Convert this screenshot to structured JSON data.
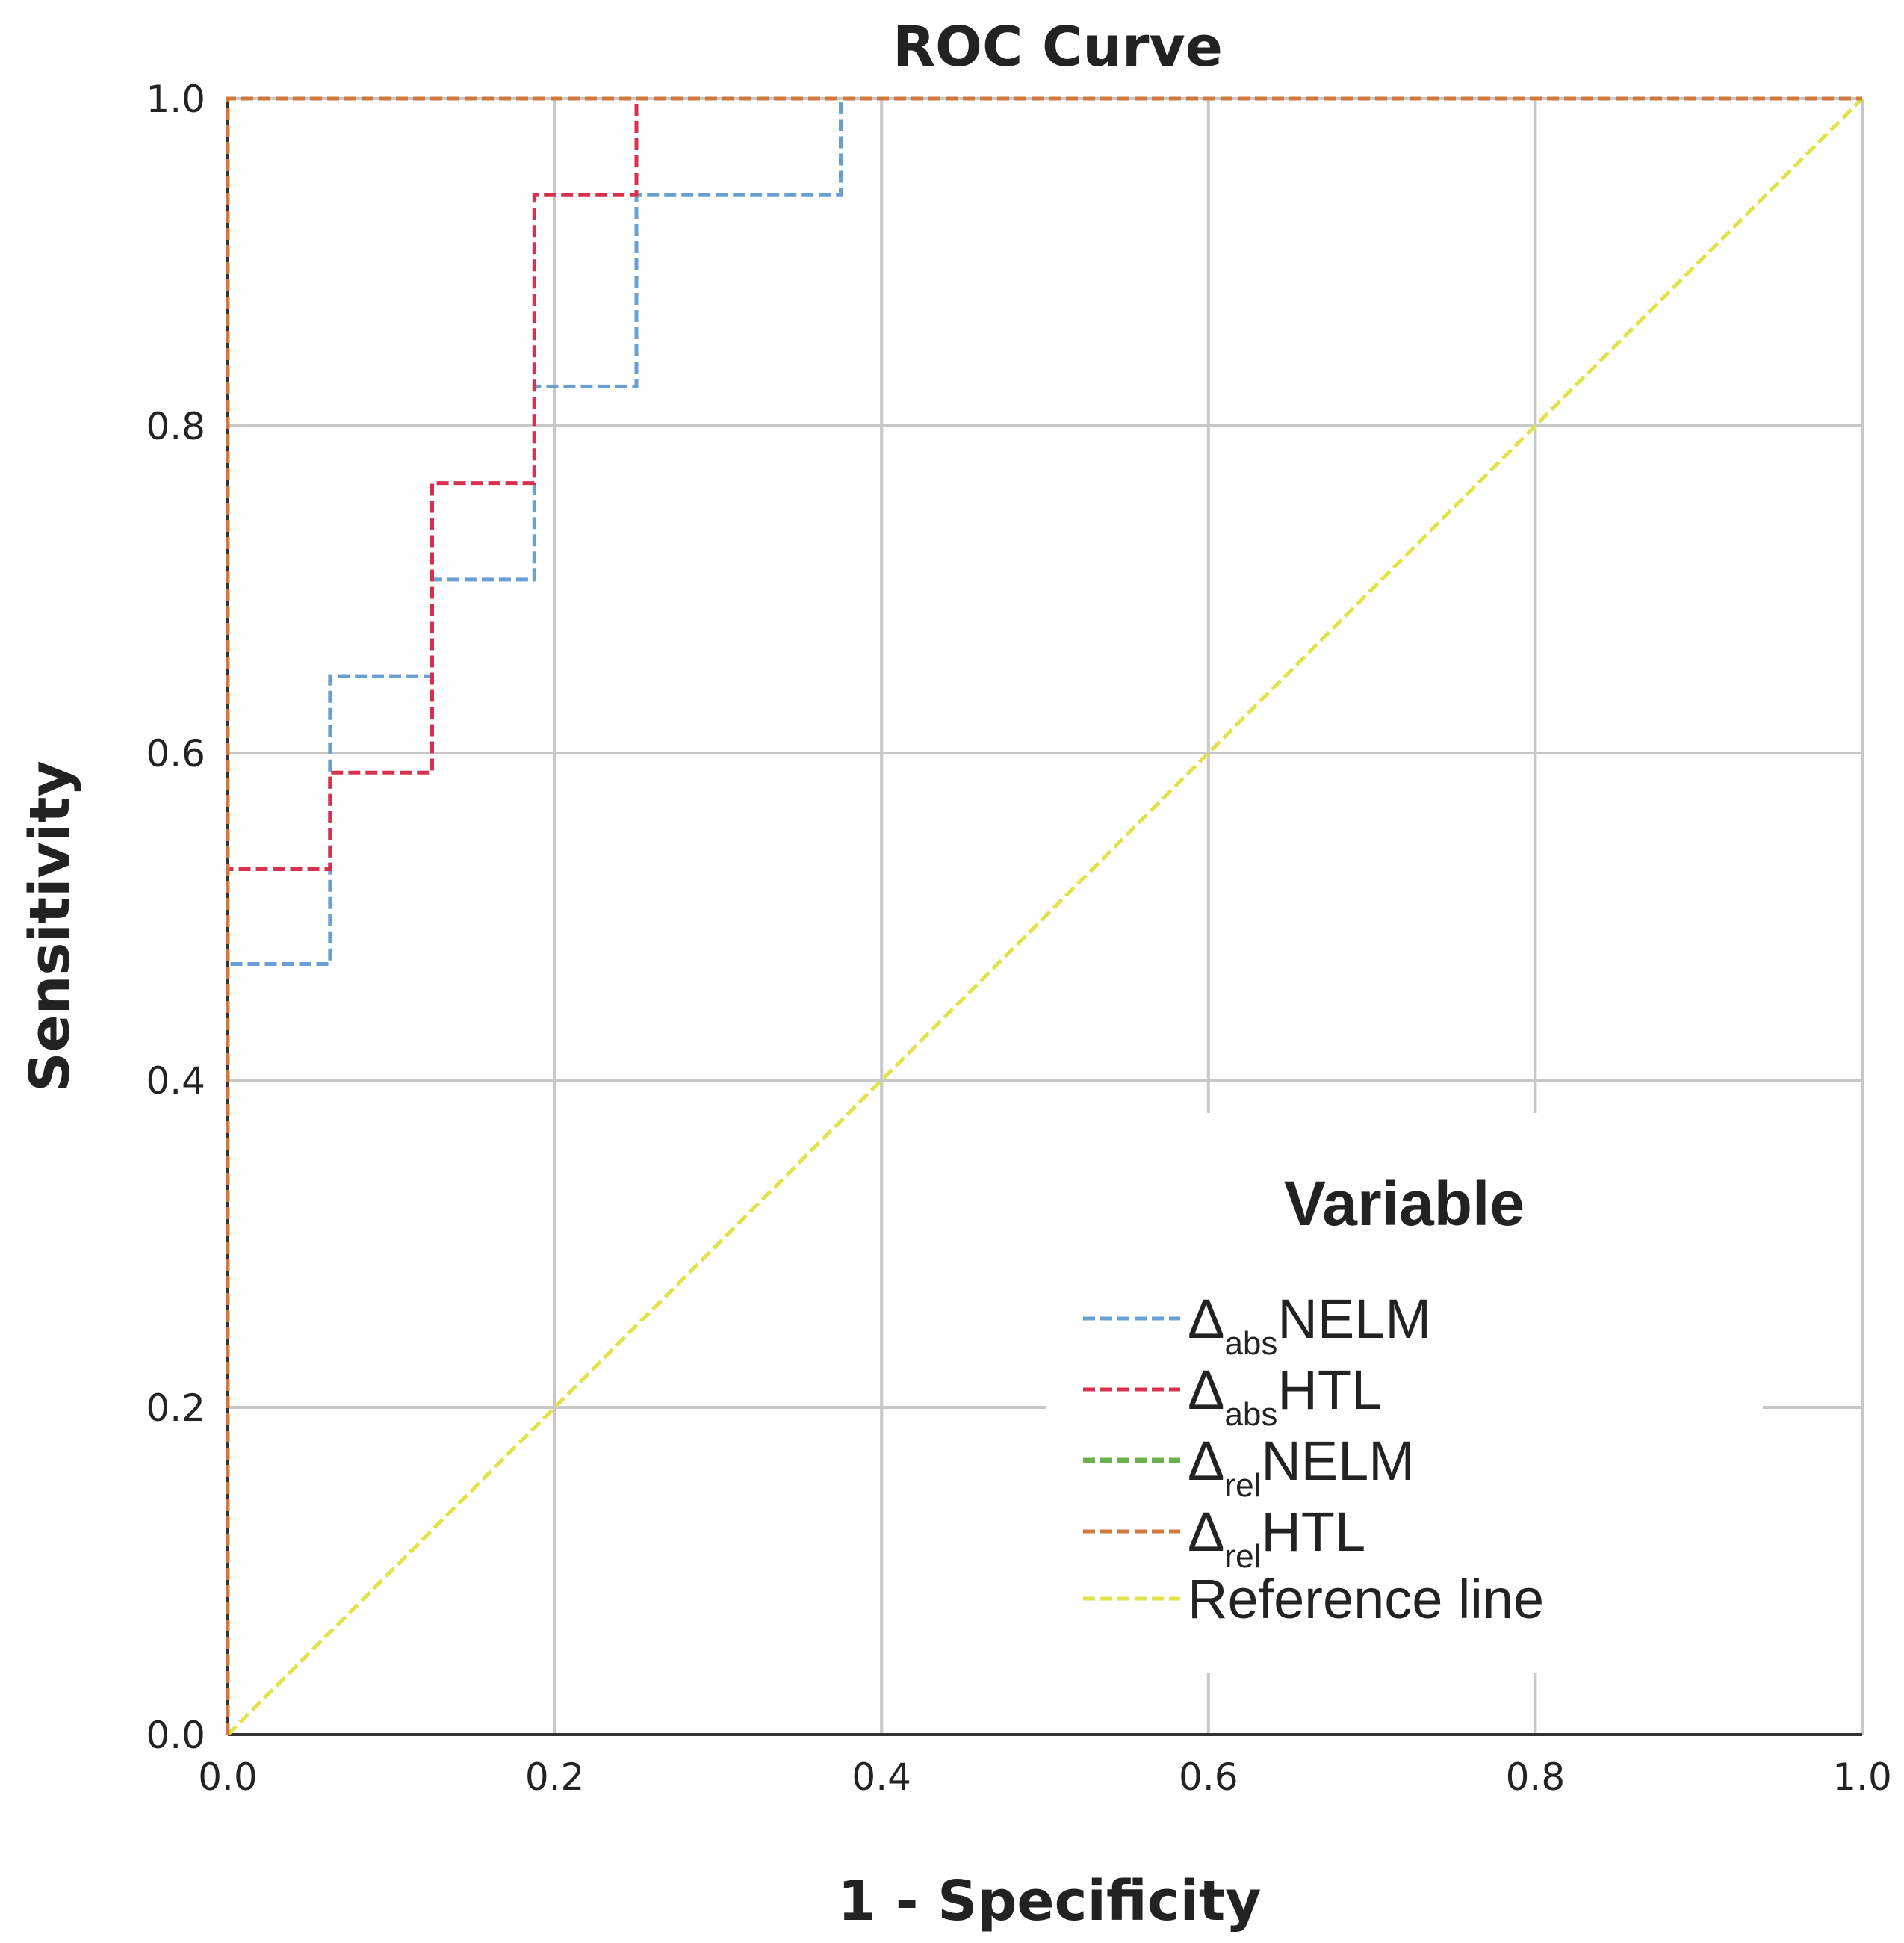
{
  "chart_data": {
    "type": "line",
    "title": "ROC Curve",
    "xlabel": "1 - Specificity",
    "ylabel": "Sensitivity",
    "xlim": [
      0,
      1
    ],
    "ylim": [
      0,
      1
    ],
    "grid": true,
    "x_ticks": [
      "0.0",
      "0.2",
      "0.4",
      "0.6",
      "0.8",
      "1.0"
    ],
    "y_ticks": [
      "0.0",
      "0.2",
      "0.4",
      "0.6",
      "0.8",
      "1.0"
    ],
    "legend": {
      "title": "Variable",
      "position": "bottom-right"
    },
    "series": [
      {
        "name": "ΔabsNELM",
        "symbol": "Δ",
        "sub": "abs",
        "suffix": "NELM",
        "color": "#6a9fd4",
        "x": [
          0,
          0,
          0.0625,
          0.0625,
          0.125,
          0.125,
          0.1875,
          0.1875,
          0.25,
          0.25,
          0.375,
          0.375,
          1
        ],
        "y": [
          0,
          0.471,
          0.471,
          0.647,
          0.647,
          0.706,
          0.706,
          0.824,
          0.824,
          0.941,
          0.941,
          1,
          1
        ]
      },
      {
        "name": "ΔabsHTL",
        "symbol": "Δ",
        "sub": "abs",
        "suffix": "HTL",
        "color": "#d8304f",
        "x": [
          0,
          0,
          0.0625,
          0.0625,
          0.125,
          0.125,
          0.1875,
          0.1875,
          0.25,
          0.25,
          1
        ],
        "y": [
          0,
          0.529,
          0.529,
          0.588,
          0.588,
          0.765,
          0.765,
          0.941,
          0.941,
          1,
          1
        ]
      },
      {
        "name": "ΔrelNELM",
        "symbol": "Δ",
        "sub": "rel",
        "suffix": "NELM",
        "color": "#6ab04c",
        "x": [
          0,
          0,
          1
        ],
        "y": [
          0,
          1,
          1
        ]
      },
      {
        "name": "ΔrelHTL",
        "symbol": "Δ",
        "sub": "rel",
        "suffix": "HTL",
        "color": "#d27a3c",
        "x": [
          0,
          0,
          1
        ],
        "y": [
          0,
          1,
          1
        ]
      },
      {
        "name": "Reference line",
        "symbol": "",
        "sub": "",
        "suffix": "Reference line",
        "color": "#e2e24a",
        "x": [
          0,
          1
        ],
        "y": [
          0,
          1
        ]
      }
    ]
  }
}
